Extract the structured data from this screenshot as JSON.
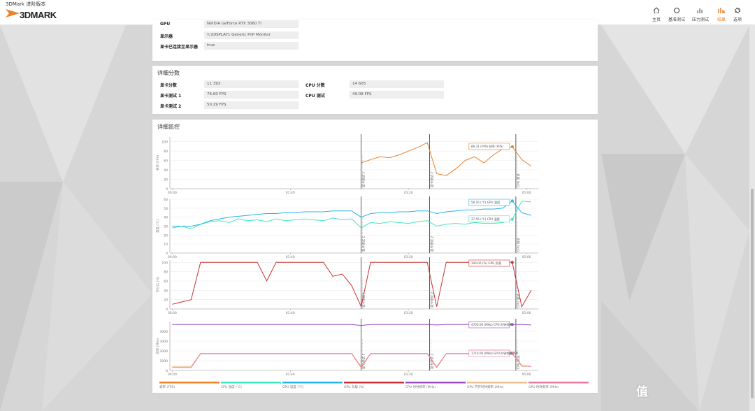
{
  "window_title": "3DMark 进阶版本",
  "logo": "3DMARK",
  "nav": [
    "主页",
    "基准测试",
    "压力测试",
    "结果",
    "选项"
  ],
  "system_info": {
    "rows": [
      [
        "GPU",
        "NVIDIA GeForce RTX 3060 Ti"
      ],
      [
        "显示器",
        "\\\\.\\DISPLAY1 Generic PnP Monitor"
      ],
      [
        "显卡已连接至显示器",
        "true"
      ]
    ]
  },
  "scores": {
    "title": "详细分数",
    "rows": [
      [
        "显卡分数",
        "11 393",
        "CPU 分数",
        "14 605"
      ],
      [
        "显卡测试 1",
        "76.60 FPS",
        "CPU 测试",
        "49.08 FPS"
      ],
      [
        "显卡测试 2",
        "50.29 FPS"
      ]
    ]
  },
  "monitoring": {
    "title": "详细监控",
    "xlim": [
      -2,
      310
    ],
    "xticks": [
      {
        "value": 0,
        "label": "00:00"
      },
      {
        "value": 100,
        "label": "01:40"
      },
      {
        "value": 200,
        "label": "03:20"
      },
      {
        "value": 300,
        "label": "05:00"
      }
    ],
    "markers": [
      {
        "value": 160,
        "label": "显卡测试 1"
      },
      {
        "value": 218,
        "label": "显卡测试 2"
      },
      {
        "value": 291,
        "label": "CPU 测试"
      }
    ],
    "x": [
      0,
      8,
      16,
      24,
      32,
      40,
      48,
      56,
      64,
      72,
      80,
      88,
      96,
      104,
      112,
      120,
      128,
      136,
      144,
      152,
      160,
      168,
      176,
      184,
      192,
      200,
      208,
      216,
      224,
      232,
      240,
      248,
      256,
      264,
      272,
      280,
      288,
      296,
      304
    ],
    "charts": [
      {
        "y_label": "帧率 (FPS)",
        "ylim": [
          0,
          110
        ],
        "yticks": [
          0,
          20,
          40,
          60,
          80,
          100
        ],
        "series": [
          {
            "name": "帧率 (FPS)",
            "color": "#e8812a",
            "tooltip": "89.31 (FPS) 帧率 (FPS)",
            "values": [
              null,
              null,
              null,
              null,
              null,
              null,
              null,
              null,
              null,
              null,
              null,
              null,
              null,
              null,
              null,
              null,
              null,
              null,
              null,
              null,
              55,
              62,
              68,
              66,
              72,
              80,
              88,
              98,
              32,
              28,
              42,
              60,
              68,
              55,
              72,
              85,
              89.31,
              62,
              48
            ]
          }
        ]
      },
      {
        "y_label": "温度 (°C)",
        "ylim": [
          0,
          60
        ],
        "yticks": [
          0,
          10,
          20,
          30,
          40,
          50,
          60
        ],
        "series": [
          {
            "name": "CPU 温度 (°C)",
            "color": "#3de8c0",
            "tooltip": "37.56 (°C) CPU 温度",
            "values": [
              28,
              30,
              27,
              32,
              35,
              36,
              34,
              38,
              36,
              37,
              35,
              38,
              36,
              37,
              38,
              37,
              36,
              39,
              37,
              38,
              28,
              34,
              33,
              35,
              34,
              33,
              35,
              36,
              30,
              32,
              33,
              32,
              34,
              33,
              33,
              34,
              37.56,
              58,
              57
            ]
          },
          {
            "name": "GPU 温度 (°C)",
            "color": "#27b4e8",
            "tooltip": "58.16 (°C) GPU 温度",
            "values": [
              30,
              30,
              30,
              32,
              36,
              38,
              40,
              41,
              42,
              43,
              44,
              44,
              45,
              45,
              46,
              46,
              46,
              47,
              47,
              47,
              40,
              44,
              45,
              45,
              46,
              46,
              47,
              47,
              44,
              46,
              47,
              48,
              48,
              49,
              49,
              50,
              58.16,
              45,
              42
            ]
          }
        ]
      },
      {
        "y_label": "百分比 (%)",
        "ylim": [
          0,
          105
        ],
        "yticks": [
          0,
          20,
          40,
          60,
          80,
          100
        ],
        "series": [
          {
            "name": "GPU 负载 (%)",
            "color": "#c83232",
            "tooltip": "100.00 (%) GPU 负载",
            "values": [
              10,
              15,
              20,
              100,
              100,
              100,
              100,
              100,
              100,
              100,
              60,
              100,
              100,
              100,
              100,
              100,
              100,
              70,
              75,
              50,
              5,
              100,
              100,
              100,
              100,
              100,
              100,
              100,
              5,
              100,
              100,
              100,
              100,
              100,
              100,
              100,
              100,
              5,
              40
            ]
          }
        ]
      },
      {
        "y_label": "频率 (MHz)",
        "ylim": [
          0,
          5000
        ],
        "yticks": [
          0,
          1000,
          2000,
          3000,
          4000
        ],
        "series": [
          {
            "name": "CPU 时钟频率 (MHz)",
            "color": "#9b50c8",
            "tooltip": "4700.00 (MHz) CPU 时钟频率",
            "values": [
              4700,
              4700,
              4700,
              4700,
              4700,
              4700,
              4700,
              4700,
              4700,
              4700,
              4700,
              4700,
              4700,
              4700,
              4700,
              4700,
              4700,
              4700,
              4700,
              4700,
              4600,
              4700,
              4700,
              4700,
              4700,
              4700,
              4700,
              4700,
              4650,
              4700,
              4700,
              4700,
              4700,
              4700,
              4700,
              4700,
              4700,
              4700,
              4650
            ]
          },
          {
            "name": "GPU 内存时钟频率 (MHz)",
            "color": "#f0c090",
            "tooltip": "1750.00 (MHz) GPU 内存时钟频率",
            "values": [
              405,
              405,
              405,
              1750,
              1750,
              1750,
              1750,
              1750,
              1750,
              1750,
              1750,
              1750,
              1750,
              1750,
              1750,
              1750,
              1750,
              1750,
              1750,
              1750,
              405,
              1750,
              1750,
              1750,
              1750,
              1750,
              1750,
              1750,
              405,
              1750,
              1750,
              1750,
              1750,
              1750,
              1750,
              1750,
              1750,
              405,
              405
            ]
          },
          {
            "name": "GPU 时钟频率 (MHz)",
            "color": "#e87aa0",
            "tooltip": "1710.00 (MHz) GPU 时钟频率",
            "values": [
              300,
              300,
              300,
              1710,
              1710,
              1710,
              1710,
              1710,
              1710,
              1710,
              1710,
              1710,
              1710,
              1710,
              1710,
              1710,
              1710,
              1710,
              1710,
              1710,
              300,
              1710,
              1710,
              1710,
              1710,
              1710,
              1710,
              1710,
              300,
              1710,
              1710,
              1710,
              1710,
              1710,
              1710,
              1710,
              1710,
              500,
              400
            ]
          }
        ]
      }
    ]
  }
}
